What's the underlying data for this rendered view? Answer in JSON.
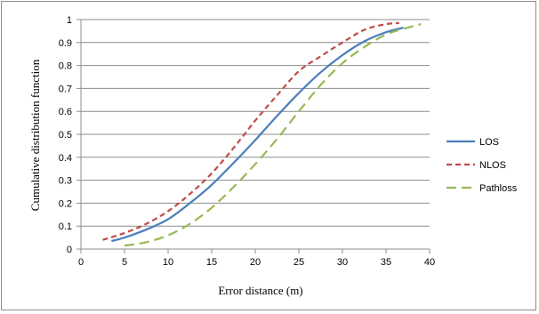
{
  "chart_data": {
    "type": "line",
    "title": "",
    "xlabel": "Error distance (m)",
    "ylabel": "Cumulative distribution function",
    "xlim": [
      0,
      40
    ],
    "ylim": [
      0,
      1
    ],
    "xticks": [
      0,
      5,
      10,
      15,
      20,
      25,
      30,
      35,
      40
    ],
    "yticks": [
      0,
      0.1,
      0.2,
      0.3,
      0.4,
      0.5,
      0.6,
      0.7,
      0.8,
      0.9,
      1
    ],
    "xtick_labels": [
      "0",
      "5",
      "10",
      "15",
      "20",
      "25",
      "30",
      "35",
      "40"
    ],
    "ytick_labels": [
      "0",
      "0.1",
      "0.2",
      "0.3",
      "0.4",
      "0.5",
      "0.6",
      "0.7",
      "0.8",
      "0.9",
      "1"
    ],
    "grid": "horizontal",
    "legend_position": "right",
    "series": [
      {
        "name": "LOS",
        "color": "#4a7ebb",
        "style": "solid",
        "x": [
          3.5,
          5,
          7.5,
          10,
          12.5,
          15,
          17.5,
          20,
          22.5,
          25,
          27.5,
          30,
          32.5,
          35,
          37
        ],
        "y": [
          0.035,
          0.05,
          0.085,
          0.13,
          0.2,
          0.28,
          0.375,
          0.475,
          0.58,
          0.68,
          0.77,
          0.845,
          0.905,
          0.945,
          0.965
        ]
      },
      {
        "name": "NLOS",
        "color": "#be4b48",
        "style": "dashed",
        "x": [
          2.5,
          5,
          7.5,
          10,
          12.5,
          15,
          17.5,
          20,
          22.5,
          25,
          27.5,
          30,
          32.5,
          35,
          36.5
        ],
        "y": [
          0.04,
          0.07,
          0.11,
          0.165,
          0.24,
          0.33,
          0.44,
          0.56,
          0.67,
          0.775,
          0.84,
          0.9,
          0.955,
          0.98,
          0.985
        ]
      },
      {
        "name": "Pathloss",
        "color": "#98b954",
        "style": "longdash",
        "x": [
          5,
          7.5,
          10,
          12.5,
          15,
          17.5,
          20,
          22.5,
          25,
          27.5,
          30,
          32.5,
          35,
          37.5,
          39
        ],
        "y": [
          0.015,
          0.03,
          0.06,
          0.11,
          0.18,
          0.27,
          0.37,
          0.48,
          0.6,
          0.715,
          0.81,
          0.88,
          0.935,
          0.965,
          0.98
        ]
      }
    ]
  }
}
